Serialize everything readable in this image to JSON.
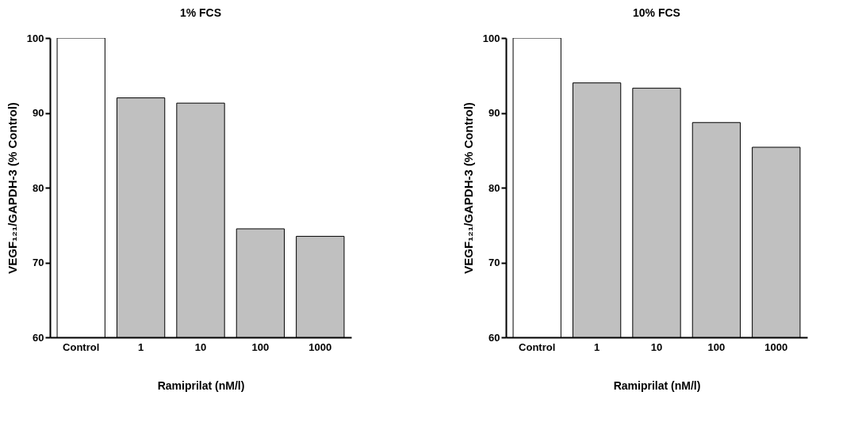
{
  "chart_data": [
    {
      "type": "bar",
      "title": "1% FCS",
      "categories": [
        "Control",
        "1",
        "10",
        "100",
        "1000"
      ],
      "values": [
        100,
        92.0,
        91.3,
        74.5,
        73.5
      ],
      "colors": [
        "#ffffff",
        "#c0c0c0",
        "#c0c0c0",
        "#c0c0c0",
        "#c0c0c0"
      ],
      "xlabel": "Ramiprilat (nM/l)",
      "ylabel": "VEGF₁₂₁/GAPDH-3 (% Control)",
      "ylim": [
        60,
        100
      ],
      "yticks": [
        60,
        70,
        80,
        90,
        100
      ]
    },
    {
      "type": "bar",
      "title": "10% FCS",
      "categories": [
        "Control",
        "1",
        "10",
        "100",
        "1000"
      ],
      "values": [
        100,
        94.0,
        93.3,
        88.7,
        85.4
      ],
      "colors": [
        "#ffffff",
        "#c0c0c0",
        "#c0c0c0",
        "#c0c0c0",
        "#c0c0c0"
      ],
      "xlabel": "Ramiprilat (nM/l)",
      "ylabel": "VEGF₁₂₁/GAPDH-3 (% Control)",
      "ylim": [
        60,
        100
      ],
      "yticks": [
        60,
        70,
        80,
        90,
        100
      ]
    }
  ]
}
